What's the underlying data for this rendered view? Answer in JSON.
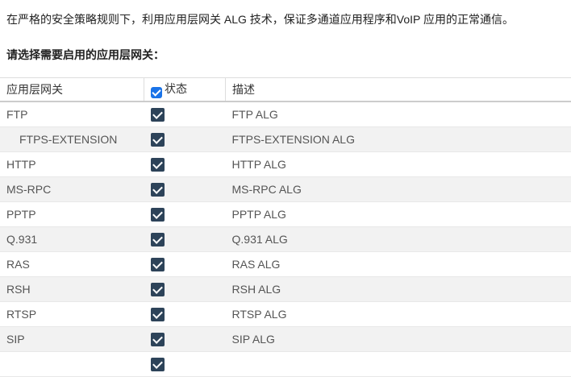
{
  "intro": "在严格的安全策略规则下，利用应用层网关 ALG 技术，保证多通道应用程序和VoIP 应用的正常通信。",
  "prompt": "请选择需要启用的应用层网关：",
  "table": {
    "headers": {
      "gateway": "应用层网关",
      "status": "状态",
      "description": "描述"
    },
    "header_checked": true,
    "rows": [
      {
        "name": "FTP",
        "checked": true,
        "desc": "FTP ALG"
      },
      {
        "name": "FTPS-EXTENSION",
        "checked": true,
        "desc": "FTPS-EXTENSION ALG"
      },
      {
        "name": "HTTP",
        "checked": true,
        "desc": "HTTP ALG"
      },
      {
        "name": "MS-RPC",
        "checked": true,
        "desc": "MS-RPC ALG"
      },
      {
        "name": "PPTP",
        "checked": true,
        "desc": "PPTP ALG"
      },
      {
        "name": "Q.931",
        "checked": true,
        "desc": "Q.931 ALG"
      },
      {
        "name": "RAS",
        "checked": true,
        "desc": "RAS ALG"
      },
      {
        "name": "RSH",
        "checked": true,
        "desc": "RSH ALG"
      },
      {
        "name": "RTSP",
        "checked": true,
        "desc": "RTSP ALG"
      },
      {
        "name": "SIP",
        "checked": true,
        "desc": "SIP ALG"
      },
      {
        "name": "",
        "checked": true,
        "desc": ""
      }
    ]
  },
  "colors": {
    "checkbox": "#2d4359",
    "header_checkbox": "#1a73e8",
    "alt_row": "#f2f2f2"
  }
}
